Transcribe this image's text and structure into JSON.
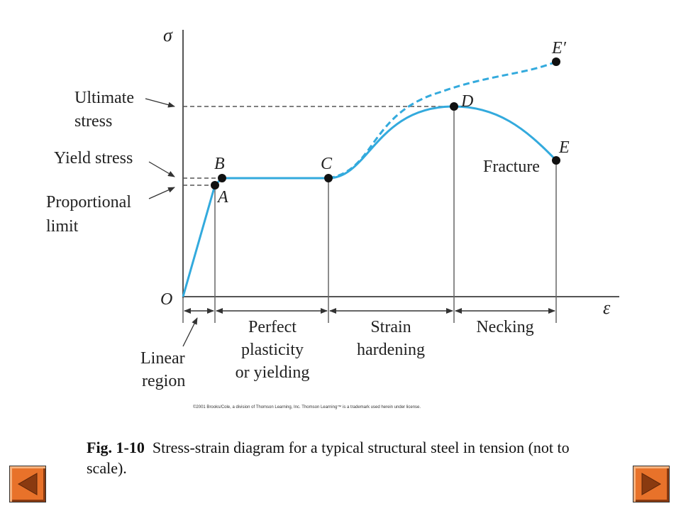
{
  "axes": {
    "y_symbol": "σ",
    "x_symbol": "ε",
    "origin": "O"
  },
  "points": {
    "A": "A",
    "B": "B",
    "C": "C",
    "D": "D",
    "E": "E",
    "E_prime": "E′"
  },
  "stress_labels": {
    "ultimate_line1": "Ultimate",
    "ultimate_line2": "stress",
    "yield": "Yield stress",
    "proportional_line1": "Proportional",
    "proportional_line2": "limit"
  },
  "fracture_label": "Fracture",
  "regions": {
    "linear_line1": "Linear",
    "linear_line2": "region",
    "plasticity_line1": "Perfect",
    "plasticity_line2": "plasticity",
    "plasticity_line3": "or yielding",
    "hardening_line1": "Strain",
    "hardening_line2": "hardening",
    "necking": "Necking"
  },
  "copyright": "©2001 Brooks/Cole, a division of Thomson Learning, Inc.  Thomson Learning™ is a trademark used herein under license.",
  "caption": {
    "figure_number": "Fig. 1-10",
    "text": "Stress-strain diagram for a typical structural steel in tension (not to scale)."
  },
  "colors": {
    "curve": "#33aadd",
    "axis": "#555555",
    "point": "#111111",
    "nav_button": "#e8722a",
    "nav_arrow": "#8a3a10"
  },
  "navigation": {
    "prev_icon": "left-triangle-icon",
    "next_icon": "right-triangle-icon"
  }
}
